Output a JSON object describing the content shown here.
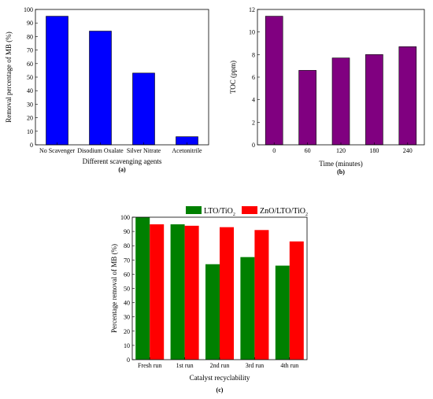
{
  "chart_data": [
    {
      "type": "bar",
      "panel_label": "(a)",
      "categories": [
        "No Scavenger",
        "Disodium Oxalate",
        "Silver Nitrate",
        "Acetonitrile"
      ],
      "values": [
        95,
        84,
        53,
        6
      ],
      "xlabel": "Different scavenging agents",
      "ylabel": "Removal percentage of MB (%)",
      "ylim": [
        0,
        100
      ],
      "yticks": [
        0,
        10,
        20,
        30,
        40,
        50,
        60,
        70,
        80,
        90,
        100
      ],
      "color": "#0000ff",
      "grid": false
    },
    {
      "type": "bar",
      "panel_label": "(b)",
      "categories": [
        "0",
        "60",
        "120",
        "180",
        "240"
      ],
      "values": [
        11.4,
        6.6,
        7.7,
        8.0,
        8.7
      ],
      "xlabel": "Time (minutes)",
      "ylabel": "TOC (ppm)",
      "ylim": [
        0,
        12
      ],
      "yticks": [
        0,
        2,
        4,
        6,
        8,
        10,
        12
      ],
      "color": "#800080",
      "grid": false
    },
    {
      "type": "bar",
      "panel_label": "(c)",
      "categories": [
        "Fresh run",
        "1st run",
        "2nd run",
        "3rd run",
        "4th run"
      ],
      "series": [
        {
          "name": "LTO/TiO",
          "name_sub": "2",
          "values": [
            100,
            95,
            67,
            72,
            66
          ],
          "color": "#008000"
        },
        {
          "name": "ZnO/LTO/TiO",
          "name_sub": "2",
          "values": [
            95,
            94,
            93,
            91,
            83
          ],
          "color": "#ff0000"
        }
      ],
      "xlabel": "Catalyst recyclability",
      "ylabel": "Percentage removal of MB (%)",
      "ylim": [
        0,
        100
      ],
      "yticks": [
        0,
        10,
        20,
        30,
        40,
        50,
        60,
        70,
        80,
        90,
        100
      ],
      "legend_position": "top",
      "grid": false
    }
  ]
}
